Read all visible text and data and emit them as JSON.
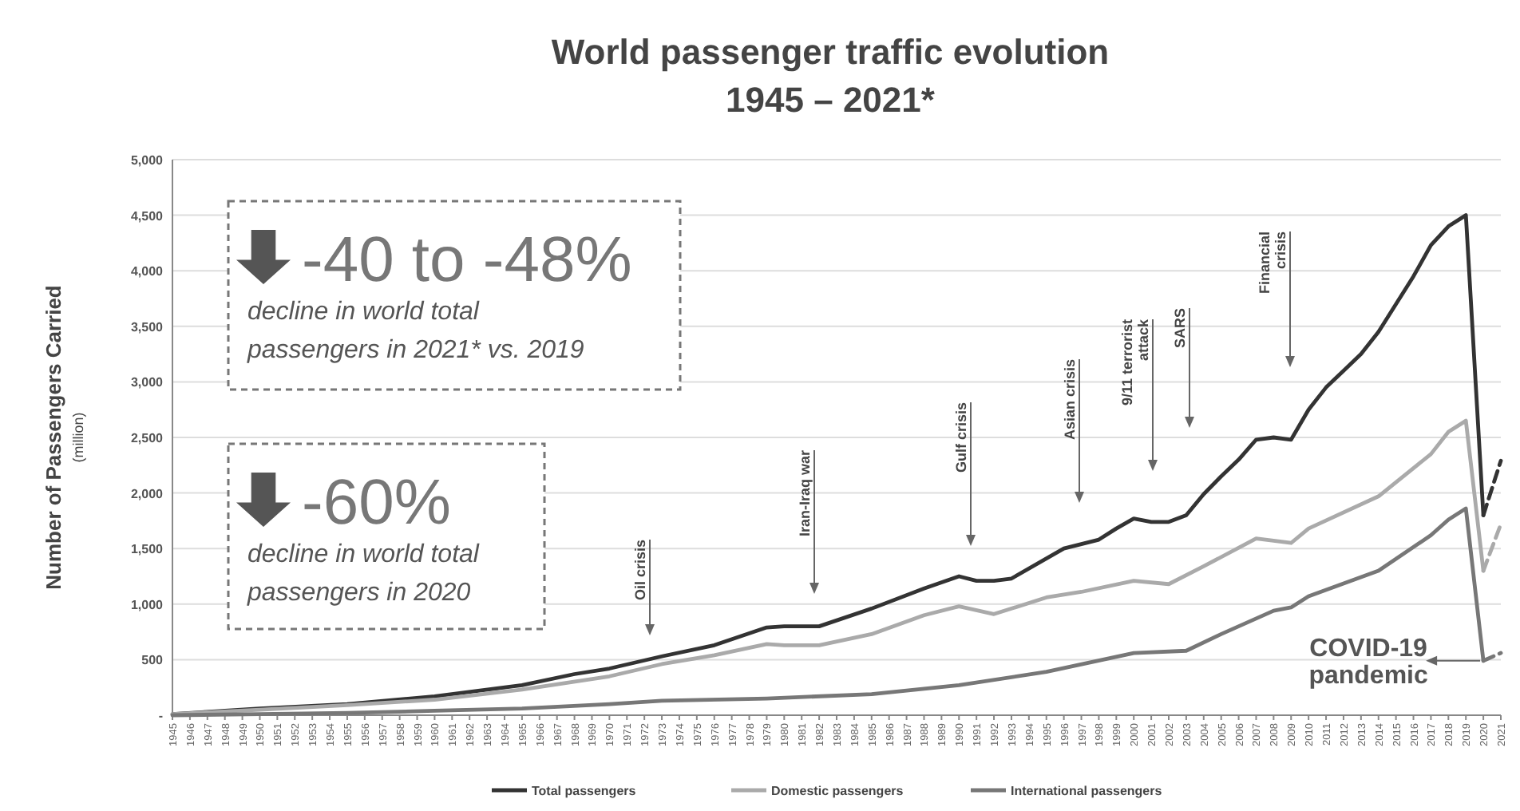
{
  "chart_data": {
    "type": "line",
    "title": "World passenger traffic evolution",
    "subtitle": "1945 – 2021*",
    "ylabel": "Number of Passengers Carried $_{(million)}$",
    "xlim": [
      1945,
      2021
    ],
    "xticks": [
      1945,
      1946,
      1947,
      1948,
      1949,
      1950,
      1951,
      1952,
      1953,
      1954,
      1955,
      1956,
      1957,
      1958,
      1959,
      1960,
      1961,
      1962,
      1963,
      1964,
      1965,
      1966,
      1967,
      1968,
      1969,
      1970,
      1971,
      1972,
      1973,
      1974,
      1975,
      1976,
      1977,
      1978,
      1979,
      1980,
      1981,
      1982,
      1983,
      1984,
      1985,
      1986,
      1987,
      1988,
      1989,
      1990,
      1991,
      1992,
      1993,
      1994,
      1995,
      1996,
      1997,
      1998,
      1999,
      2000,
      2001,
      2002,
      2003,
      2004,
      2005,
      2006,
      2007,
      2008,
      2009,
      2010,
      2011,
      2012,
      2013,
      2014,
      2015,
      2016,
      2017,
      2018,
      2019,
      2020,
      2021
    ],
    "ylim": [
      0,
      5000
    ],
    "yticks": [
      {
        "value": 0,
        "label": "-"
      },
      500,
      {
        "value": 1000,
        "label": "1,000"
      },
      {
        "value": 1500,
        "label": "1,500"
      },
      {
        "value": 2000,
        "label": "2,000"
      },
      {
        "value": 2500,
        "label": "2,500"
      },
      {
        "value": 3000,
        "label": "3,000"
      },
      {
        "value": 3500,
        "label": "3,500"
      },
      {
        "value": 4000,
        "label": "4,000"
      },
      {
        "value": 4500,
        "label": "4,500"
      },
      {
        "value": 5000,
        "label": "5,000"
      }
    ],
    "grid": "y",
    "legend": "bottom",
    "line_style": "solid",
    "marker": "none",
    "series": [
      {
        "name": "Total passengers",
        "color": "#333333",
        "x": [
          1945,
          1950,
          1955,
          1960,
          1965,
          1968,
          1970,
          1973,
          1976,
          1979,
          1980,
          1982,
          1985,
          1988,
          1990,
          1991,
          1992,
          1993,
          1996,
          1997,
          1998,
          1999,
          2000,
          2001,
          2002,
          2003,
          2004,
          2005,
          2006,
          2007,
          2008,
          2009,
          2010,
          2011,
          2012,
          2013,
          2014,
          2015,
          2016,
          2017,
          2018,
          2019,
          2020
        ],
        "values": [
          10,
          60,
          100,
          170,
          270,
          370,
          420,
          530,
          630,
          790,
          800,
          800,
          960,
          1140,
          1250,
          1210,
          1210,
          1230,
          1500,
          1540,
          1580,
          1680,
          1770,
          1740,
          1740,
          1800,
          1990,
          2150,
          2300,
          2480,
          2500,
          2480,
          2750,
          2950,
          3100,
          3250,
          3450,
          3700,
          3950,
          4230,
          4400,
          4500,
          1800
        ]
      },
      {
        "name": "Domestic passengers",
        "color": "#aaaaaa",
        "x": [
          1945,
          1950,
          1955,
          1960,
          1965,
          1970,
          1973,
          1976,
          1979,
          1980,
          1982,
          1985,
          1988,
          1990,
          1992,
          1995,
          1997,
          2000,
          2002,
          2004,
          2007,
          2009,
          2010,
          2014,
          2017,
          2018,
          2019,
          2020
        ],
        "values": [
          10,
          50,
          90,
          140,
          230,
          350,
          460,
          540,
          640,
          630,
          630,
          730,
          900,
          980,
          910,
          1060,
          1110,
          1210,
          1180,
          1340,
          1590,
          1550,
          1680,
          1970,
          2350,
          2550,
          2650,
          1300
        ]
      },
      {
        "name": "International passengers",
        "color": "#777777",
        "x": [
          1945,
          1950,
          1955,
          1960,
          1965,
          1970,
          1973,
          1979,
          1985,
          1990,
          1995,
          2000,
          2003,
          2005,
          2008,
          2009,
          2010,
          2014,
          2017,
          2018,
          2019,
          2020
        ],
        "values": [
          0,
          10,
          20,
          40,
          60,
          100,
          130,
          150,
          190,
          270,
          390,
          560,
          580,
          730,
          940,
          970,
          1070,
          1300,
          1620,
          1760,
          1860,
          490
        ]
      },
      {
        "color": "#333333",
        "line_style": "dashed",
        "x": [
          2020,
          2021
        ],
        "values": [
          1800,
          2290
        ]
      },
      {
        "color": "#aaaaaa",
        "line_style": "dashed",
        "x": [
          2020,
          2021
        ],
        "values": [
          1300,
          1720
        ]
      },
      {
        "color": "#777777",
        "line_style": "dashed",
        "x": [
          2020,
          2021
        ],
        "values": [
          490,
          560
        ]
      }
    ],
    "annotations": [
      "-40 to -48%",
      "decline in world total passengers in 2021* vs. 2019",
      "-60%",
      "decline in world total passengers in 2020",
      "Oil crisis",
      "Iran-Iraq war",
      "Gulf crisis",
      "Asian crisis",
      "9/11 terrorist attack",
      "SARS",
      "Financial crisis",
      {
        "text": "COVID-19 pandemic",
        "x": 2020,
        "y": 490
      }
    ]
  }
}
